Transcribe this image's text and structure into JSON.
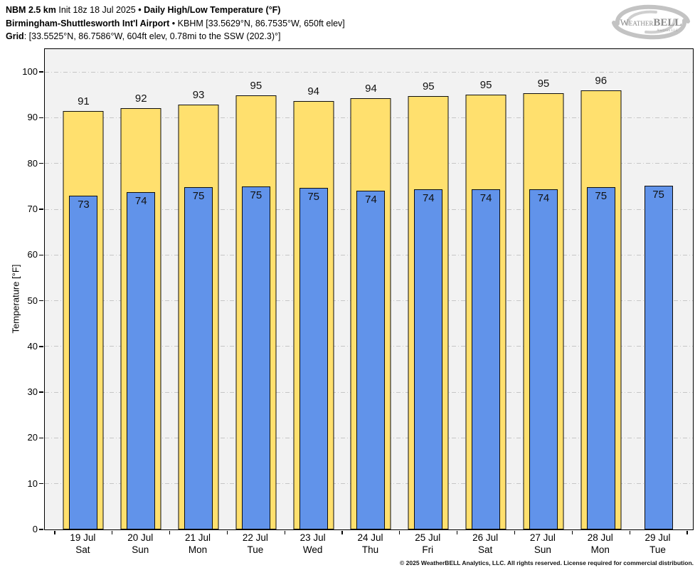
{
  "header": {
    "line1": {
      "model": "NBM 2.5 km",
      "init": "Init 18z 18 Jul 2025",
      "sep": "•",
      "title": "Daily High/Low Temperature (°F)"
    },
    "line2": {
      "station": "Birmingham-Shuttlesworth Int'l Airport",
      "sep": "•",
      "info": "KBHM [33.5629°N, 86.7535°W, 650ft elev]"
    },
    "line3": {
      "label": "Grid",
      "info": ": [33.5525°N, 86.7586°W, 604ft elev, 0.78mi to the SSW (202.3)°]"
    }
  },
  "logo": {
    "name_weather": "Weather",
    "name_bell": "BELL",
    "subtext": "Analytics LLC"
  },
  "chart_data": {
    "type": "bar",
    "title": "Daily High/Low Temperature (°F)",
    "xlabel": "",
    "ylabel": "Temperature [°F]",
    "ylim": [
      0,
      105
    ],
    "yticks": [
      0,
      10,
      20,
      30,
      40,
      50,
      60,
      70,
      80,
      90,
      100
    ],
    "grid": "horizontal dash-dot gridlines at each ytick, legend: none",
    "categories": [
      {
        "date": "19 Jul",
        "day": "Sat"
      },
      {
        "date": "20 Jul",
        "day": "Sun"
      },
      {
        "date": "21 Jul",
        "day": "Mon"
      },
      {
        "date": "22 Jul",
        "day": "Tue"
      },
      {
        "date": "23 Jul",
        "day": "Wed"
      },
      {
        "date": "24 Jul",
        "day": "Thu"
      },
      {
        "date": "25 Jul",
        "day": "Fri"
      },
      {
        "date": "26 Jul",
        "day": "Sat"
      },
      {
        "date": "27 Jul",
        "day": "Sun"
      },
      {
        "date": "28 Jul",
        "day": "Mon"
      },
      {
        "date": "29 Jul",
        "day": "Tue"
      }
    ],
    "series": [
      {
        "name": "High",
        "color": "#FFE06E",
        "values": [
          91.4,
          92.1,
          92.9,
          94.9,
          93.7,
          94.2,
          94.7,
          95.0,
          95.4,
          96.0,
          null
        ],
        "labels": [
          "91",
          "92",
          "93",
          "95",
          "94",
          "94",
          "95",
          "95",
          "95",
          "96",
          ""
        ]
      },
      {
        "name": "Low",
        "color": "#6193EA",
        "values": [
          73.0,
          73.8,
          74.8,
          75.0,
          74.7,
          74.1,
          74.4,
          74.4,
          74.4,
          74.8,
          75.2
        ],
        "labels": [
          "73",
          "74",
          "75",
          "75",
          "75",
          "74",
          "74",
          "74",
          "74",
          "75",
          "75"
        ]
      }
    ]
  },
  "colors": {
    "high": "#FFE06E",
    "low": "#6193EA",
    "plot_bg": "#F2F2F2",
    "grid": "#C6C6C6",
    "axis": "#000000"
  },
  "footer": {
    "copyright": "© 2025 WeatherBELL Analytics, LLC. All rights reserved. License required for commercial distribution."
  }
}
